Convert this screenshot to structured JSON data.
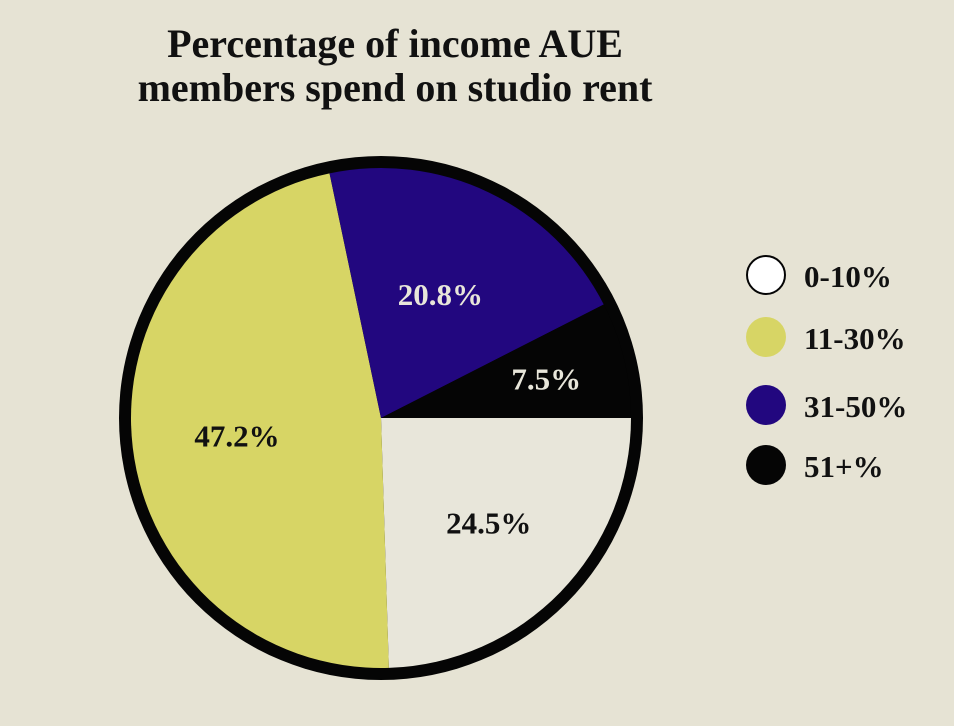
{
  "chart_data": {
    "type": "pie",
    "title": [
      "Percentage of income AUE",
      "members spend on studio rent"
    ],
    "start_angle_deg": 90,
    "direction": "clockwise",
    "legend_position": "right",
    "slices": [
      {
        "category": "0-10%",
        "value": 24.5,
        "label": "24.5%",
        "color": "#e8e6da",
        "label_color": "#111111"
      },
      {
        "category": "11-30%",
        "value": 47.2,
        "label": "47.2%",
        "color": "#d7d565",
        "label_color": "#111111"
      },
      {
        "category": "31-50%",
        "value": 20.8,
        "label": "20.8%",
        "color": "#22077f",
        "label_color": "#e8e6da"
      },
      {
        "category": "51+%",
        "value": 7.5,
        "label": "7.5%",
        "color": "#050505",
        "label_color": "#e8e6da"
      }
    ],
    "outline_color": "#050505"
  }
}
